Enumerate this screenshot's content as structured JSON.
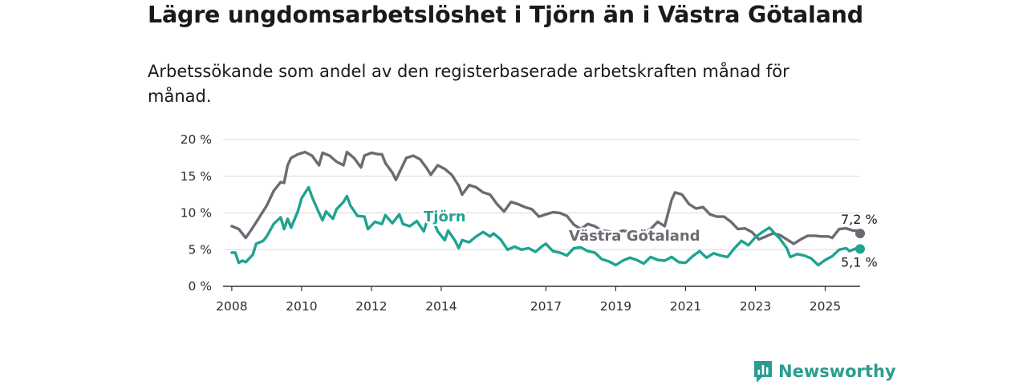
{
  "title": "Lägre ungdomsarbetslöshet i Tjörn än i Västra Götaland",
  "subtitle": "Arbetssökande som andel av den registerbaserade arbetskraften månad för månad.",
  "brand": "Newsworthy",
  "chart_data": {
    "type": "line",
    "x_unit": "year",
    "xlim": [
      2007.75,
      2026.0
    ],
    "ylim": [
      0,
      20
    ],
    "y_ticks": [
      0,
      5,
      10,
      15,
      20
    ],
    "y_tick_labels": [
      "0 %",
      "5 %",
      "10 %",
      "15 %",
      "20 %"
    ],
    "x_ticks": [
      2008,
      2010,
      2012,
      2014,
      2017,
      2019,
      2021,
      2023,
      2025
    ],
    "x_tick_labels": [
      "2008",
      "2010",
      "2012",
      "2014",
      "2017",
      "2019",
      "2021",
      "2023",
      "2025"
    ],
    "grid": true,
    "series": [
      {
        "name": "Västra Götaland",
        "color": "#6b6b73",
        "end_label": "7,2 %",
        "points": [
          [
            2008.0,
            8.2
          ],
          [
            2008.2,
            7.8
          ],
          [
            2008.4,
            6.6
          ],
          [
            2008.6,
            8.0
          ],
          [
            2008.8,
            9.5
          ],
          [
            2009.0,
            11.0
          ],
          [
            2009.2,
            13.0
          ],
          [
            2009.4,
            14.2
          ],
          [
            2009.5,
            14.1
          ],
          [
            2009.6,
            16.5
          ],
          [
            2009.7,
            17.5
          ],
          [
            2009.9,
            18.0
          ],
          [
            2010.1,
            18.3
          ],
          [
            2010.3,
            17.8
          ],
          [
            2010.5,
            16.5
          ],
          [
            2010.6,
            18.2
          ],
          [
            2010.8,
            17.8
          ],
          [
            2011.0,
            17.0
          ],
          [
            2011.2,
            16.5
          ],
          [
            2011.3,
            18.3
          ],
          [
            2011.5,
            17.5
          ],
          [
            2011.7,
            16.2
          ],
          [
            2011.8,
            17.8
          ],
          [
            2012.0,
            18.2
          ],
          [
            2012.2,
            18.0
          ],
          [
            2012.3,
            18.0
          ],
          [
            2012.4,
            16.8
          ],
          [
            2012.6,
            15.5
          ],
          [
            2012.7,
            14.5
          ],
          [
            2012.9,
            16.5
          ],
          [
            2013.0,
            17.5
          ],
          [
            2013.2,
            17.8
          ],
          [
            2013.4,
            17.3
          ],
          [
            2013.6,
            16.0
          ],
          [
            2013.7,
            15.2
          ],
          [
            2013.9,
            16.5
          ],
          [
            2014.1,
            16.0
          ],
          [
            2014.3,
            15.2
          ],
          [
            2014.5,
            13.7
          ],
          [
            2014.6,
            12.5
          ],
          [
            2014.8,
            13.8
          ],
          [
            2015.0,
            13.5
          ],
          [
            2015.2,
            12.8
          ],
          [
            2015.4,
            12.5
          ],
          [
            2015.6,
            11.2
          ],
          [
            2015.8,
            10.2
          ],
          [
            2016.0,
            11.5
          ],
          [
            2016.2,
            11.2
          ],
          [
            2016.4,
            10.8
          ],
          [
            2016.6,
            10.5
          ],
          [
            2016.8,
            9.5
          ],
          [
            2017.0,
            9.8
          ],
          [
            2017.2,
            10.1
          ],
          [
            2017.4,
            10.0
          ],
          [
            2017.6,
            9.6
          ],
          [
            2017.8,
            8.4
          ],
          [
            2018.0,
            7.8
          ],
          [
            2018.2,
            8.5
          ],
          [
            2018.4,
            8.2
          ],
          [
            2018.6,
            7.6
          ],
          [
            2018.8,
            7.5
          ],
          [
            2019.0,
            7.2
          ],
          [
            2019.2,
            7.6
          ],
          [
            2019.4,
            7.4
          ],
          [
            2019.6,
            7.2
          ],
          [
            2019.8,
            7.5
          ],
          [
            2020.0,
            7.8
          ],
          [
            2020.2,
            8.8
          ],
          [
            2020.4,
            8.2
          ],
          [
            2020.6,
            11.8
          ],
          [
            2020.7,
            12.8
          ],
          [
            2020.9,
            12.5
          ],
          [
            2021.1,
            11.2
          ],
          [
            2021.3,
            10.6
          ],
          [
            2021.5,
            10.8
          ],
          [
            2021.7,
            9.8
          ],
          [
            2021.9,
            9.5
          ],
          [
            2022.1,
            9.5
          ],
          [
            2022.3,
            8.8
          ],
          [
            2022.5,
            7.8
          ],
          [
            2022.7,
            7.9
          ],
          [
            2022.9,
            7.4
          ],
          [
            2023.1,
            6.4
          ],
          [
            2023.3,
            6.8
          ],
          [
            2023.5,
            7.2
          ],
          [
            2023.7,
            7.0
          ],
          [
            2023.9,
            6.4
          ],
          [
            2024.1,
            5.8
          ],
          [
            2024.3,
            6.4
          ],
          [
            2024.5,
            6.9
          ],
          [
            2024.7,
            6.9
          ],
          [
            2024.9,
            6.8
          ],
          [
            2025.1,
            6.8
          ],
          [
            2025.2,
            6.6
          ],
          [
            2025.4,
            7.8
          ],
          [
            2025.6,
            7.9
          ],
          [
            2025.8,
            7.6
          ],
          [
            2025.9,
            7.6
          ],
          [
            2026.0,
            7.2
          ]
        ]
      },
      {
        "name": "Tjörn",
        "color": "#1fa391",
        "end_label": "5,1 %",
        "points": [
          [
            2008.0,
            4.6
          ],
          [
            2008.1,
            4.6
          ],
          [
            2008.2,
            3.2
          ],
          [
            2008.3,
            3.5
          ],
          [
            2008.4,
            3.3
          ],
          [
            2008.5,
            3.8
          ],
          [
            2008.6,
            4.3
          ],
          [
            2008.7,
            5.8
          ],
          [
            2008.9,
            6.2
          ],
          [
            2009.0,
            6.8
          ],
          [
            2009.2,
            8.5
          ],
          [
            2009.4,
            9.4
          ],
          [
            2009.5,
            7.8
          ],
          [
            2009.6,
            9.2
          ],
          [
            2009.7,
            8.0
          ],
          [
            2009.9,
            10.3
          ],
          [
            2010.0,
            12.0
          ],
          [
            2010.2,
            13.5
          ],
          [
            2010.3,
            12.2
          ],
          [
            2010.5,
            10.0
          ],
          [
            2010.6,
            9.0
          ],
          [
            2010.7,
            10.2
          ],
          [
            2010.9,
            9.2
          ],
          [
            2011.0,
            10.5
          ],
          [
            2011.2,
            11.5
          ],
          [
            2011.3,
            12.3
          ],
          [
            2011.4,
            11.0
          ],
          [
            2011.6,
            9.6
          ],
          [
            2011.8,
            9.5
          ],
          [
            2011.9,
            7.8
          ],
          [
            2012.1,
            8.8
          ],
          [
            2012.3,
            8.5
          ],
          [
            2012.4,
            9.7
          ],
          [
            2012.6,
            8.6
          ],
          [
            2012.8,
            9.8
          ],
          [
            2012.9,
            8.5
          ],
          [
            2013.1,
            8.2
          ],
          [
            2013.3,
            8.9
          ],
          [
            2013.5,
            7.5
          ],
          [
            2013.6,
            9.0
          ],
          [
            2013.8,
            8.6
          ],
          [
            2013.9,
            7.5
          ],
          [
            2014.1,
            6.3
          ],
          [
            2014.2,
            7.6
          ],
          [
            2014.4,
            6.2
          ],
          [
            2014.5,
            5.2
          ],
          [
            2014.6,
            6.3
          ],
          [
            2014.8,
            6.0
          ],
          [
            2015.0,
            6.8
          ],
          [
            2015.2,
            7.4
          ],
          [
            2015.4,
            6.8
          ],
          [
            2015.5,
            7.2
          ],
          [
            2015.7,
            6.4
          ],
          [
            2015.9,
            5.0
          ],
          [
            2016.1,
            5.4
          ],
          [
            2016.3,
            5.0
          ],
          [
            2016.5,
            5.2
          ],
          [
            2016.7,
            4.7
          ],
          [
            2016.9,
            5.5
          ],
          [
            2017.0,
            5.8
          ],
          [
            2017.2,
            4.8
          ],
          [
            2017.4,
            4.6
          ],
          [
            2017.6,
            4.2
          ],
          [
            2017.8,
            5.2
          ],
          [
            2018.0,
            5.3
          ],
          [
            2018.2,
            4.8
          ],
          [
            2018.4,
            4.6
          ],
          [
            2018.6,
            3.7
          ],
          [
            2018.8,
            3.4
          ],
          [
            2019.0,
            2.9
          ],
          [
            2019.2,
            3.5
          ],
          [
            2019.4,
            3.9
          ],
          [
            2019.6,
            3.6
          ],
          [
            2019.8,
            3.1
          ],
          [
            2020.0,
            4.0
          ],
          [
            2020.2,
            3.6
          ],
          [
            2020.4,
            3.5
          ],
          [
            2020.6,
            4.0
          ],
          [
            2020.8,
            3.3
          ],
          [
            2021.0,
            3.2
          ],
          [
            2021.2,
            4.1
          ],
          [
            2021.4,
            4.8
          ],
          [
            2021.6,
            3.9
          ],
          [
            2021.8,
            4.5
          ],
          [
            2022.0,
            4.2
          ],
          [
            2022.2,
            4.0
          ],
          [
            2022.4,
            5.2
          ],
          [
            2022.6,
            6.2
          ],
          [
            2022.8,
            5.6
          ],
          [
            2023.0,
            6.7
          ],
          [
            2023.2,
            7.4
          ],
          [
            2023.4,
            8.0
          ],
          [
            2023.5,
            7.5
          ],
          [
            2023.7,
            6.5
          ],
          [
            2023.9,
            5.2
          ],
          [
            2024.0,
            4.0
          ],
          [
            2024.2,
            4.4
          ],
          [
            2024.4,
            4.2
          ],
          [
            2024.6,
            3.8
          ],
          [
            2024.8,
            2.9
          ],
          [
            2025.0,
            3.6
          ],
          [
            2025.2,
            4.1
          ],
          [
            2025.4,
            5.0
          ],
          [
            2025.6,
            5.2
          ],
          [
            2025.7,
            4.8
          ],
          [
            2025.9,
            5.2
          ],
          [
            2026.0,
            5.1
          ]
        ]
      }
    ],
    "series_labels": [
      {
        "series": "Tjörn",
        "text": "Tjörn"
      },
      {
        "series": "Västra Götaland",
        "text": "Västra Götaland"
      }
    ]
  }
}
